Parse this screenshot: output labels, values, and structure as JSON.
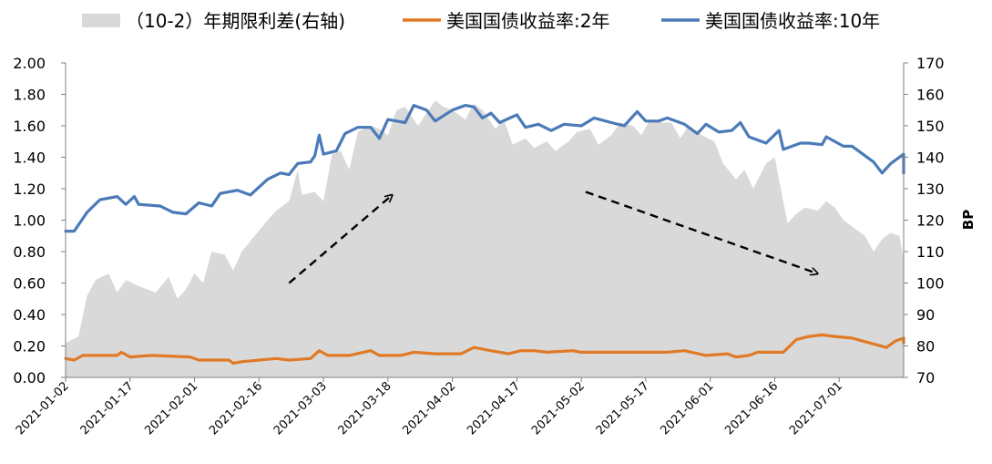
{
  "chart_data": {
    "type": "line",
    "title": "",
    "y_left": {
      "ticks": [
        "0.00",
        "0.20",
        "0.40",
        "0.60",
        "0.80",
        "1.00",
        "1.20",
        "1.40",
        "1.60",
        "1.80",
        "2.00"
      ],
      "ylim": [
        0,
        2.0
      ]
    },
    "y_right": {
      "label": "BP",
      "ticks": [
        "70",
        "80",
        "90",
        "100",
        "110",
        "120",
        "130",
        "140",
        "150",
        "160",
        "170"
      ],
      "ylim": [
        70,
        170
      ]
    },
    "x_ticks": [
      "2021-01-02",
      "2021-01-17",
      "2021-02-01",
      "2021-02-16",
      "2021-03-03",
      "2021-03-18",
      "2021-04-02",
      "2021-04-17",
      "2021-05-02",
      "2021-05-17",
      "2021-06-01",
      "2021-06-16",
      "2021-07-01"
    ],
    "x_range": [
      "2021-01-02",
      "2021-07-16"
    ],
    "legend_position": "top",
    "series": [
      {
        "name": "（10-2）年期限利差(右轴)",
        "type": "area",
        "axis": "right",
        "color": "#d9d9d9",
        "points": [
          [
            "2021-01-01",
            81
          ],
          [
            "2021-01-05",
            83
          ],
          [
            "2021-01-07",
            96
          ],
          [
            "2021-01-09",
            101
          ],
          [
            "2021-01-12",
            103
          ],
          [
            "2021-01-14",
            97
          ],
          [
            "2021-01-16",
            101
          ],
          [
            "2021-01-19",
            99
          ],
          [
            "2021-01-23",
            97
          ],
          [
            "2021-01-26",
            102
          ],
          [
            "2021-01-28",
            95
          ],
          [
            "2021-01-30",
            98
          ],
          [
            "2021-02-01",
            103
          ],
          [
            "2021-02-03",
            100
          ],
          [
            "2021-02-05",
            110
          ],
          [
            "2021-02-08",
            109
          ],
          [
            "2021-02-10",
            104
          ],
          [
            "2021-02-12",
            110
          ],
          [
            "2021-02-15",
            115
          ],
          [
            "2021-02-18",
            120
          ],
          [
            "2021-02-20",
            123
          ],
          [
            "2021-02-23",
            126
          ],
          [
            "2021-02-25",
            136
          ],
          [
            "2021-02-26",
            128
          ],
          [
            "2021-03-01",
            129
          ],
          [
            "2021-03-03",
            126
          ],
          [
            "2021-03-05",
            141
          ],
          [
            "2021-03-07",
            142
          ],
          [
            "2021-03-09",
            136
          ],
          [
            "2021-03-11",
            148
          ],
          [
            "2021-03-14",
            150
          ],
          [
            "2021-03-16",
            149
          ],
          [
            "2021-03-18",
            147
          ],
          [
            "2021-03-20",
            155
          ],
          [
            "2021-03-22",
            156
          ],
          [
            "2021-03-25",
            150
          ],
          [
            "2021-03-27",
            154
          ],
          [
            "2021-03-29",
            158
          ],
          [
            "2021-03-31",
            156
          ],
          [
            "2021-04-02",
            155
          ],
          [
            "2021-04-05",
            152
          ],
          [
            "2021-04-07",
            157
          ],
          [
            "2021-04-09",
            155
          ],
          [
            "2021-04-12",
            149
          ],
          [
            "2021-04-14",
            152
          ],
          [
            "2021-04-16",
            144
          ],
          [
            "2021-04-19",
            146
          ],
          [
            "2021-04-21",
            143
          ],
          [
            "2021-04-24",
            145
          ],
          [
            "2021-04-26",
            142
          ],
          [
            "2021-04-29",
            145
          ],
          [
            "2021-05-01",
            148
          ],
          [
            "2021-05-04",
            149
          ],
          [
            "2021-05-06",
            144
          ],
          [
            "2021-05-09",
            147
          ],
          [
            "2021-05-11",
            151
          ],
          [
            "2021-05-14",
            150
          ],
          [
            "2021-05-16",
            147
          ],
          [
            "2021-05-18",
            152
          ],
          [
            "2021-05-21",
            151
          ],
          [
            "2021-05-23",
            151
          ],
          [
            "2021-05-25",
            146
          ],
          [
            "2021-05-27",
            150
          ],
          [
            "2021-05-30",
            147
          ],
          [
            "2021-06-02",
            145
          ],
          [
            "2021-06-04",
            138
          ],
          [
            "2021-06-07",
            133
          ],
          [
            "2021-06-09",
            136
          ],
          [
            "2021-06-11",
            130
          ],
          [
            "2021-06-14",
            138
          ],
          [
            "2021-06-16",
            140
          ],
          [
            "2021-06-19",
            119
          ],
          [
            "2021-06-21",
            122
          ],
          [
            "2021-06-23",
            124
          ],
          [
            "2021-06-26",
            123
          ],
          [
            "2021-06-28",
            126
          ],
          [
            "2021-06-30",
            124
          ],
          [
            "2021-07-02",
            120
          ],
          [
            "2021-07-05",
            117
          ],
          [
            "2021-07-07",
            115
          ],
          [
            "2021-07-09",
            110
          ],
          [
            "2021-07-11",
            114
          ],
          [
            "2021-07-13",
            116
          ],
          [
            "2021-07-15",
            115
          ],
          [
            "2021-07-16",
            108
          ]
        ]
      },
      {
        "name": "美国国债收益率:2年",
        "type": "line",
        "axis": "left",
        "color": "#e07a26",
        "points": [
          [
            "2021-01-01",
            0.12
          ],
          [
            "2021-01-04",
            0.11
          ],
          [
            "2021-01-06",
            0.14
          ],
          [
            "2021-01-14",
            0.14
          ],
          [
            "2021-01-15",
            0.16
          ],
          [
            "2021-01-17",
            0.13
          ],
          [
            "2021-01-22",
            0.14
          ],
          [
            "2021-01-31",
            0.13
          ],
          [
            "2021-02-02",
            0.11
          ],
          [
            "2021-02-09",
            0.11
          ],
          [
            "2021-02-10",
            0.09
          ],
          [
            "2021-02-12",
            0.1
          ],
          [
            "2021-02-20",
            0.12
          ],
          [
            "2021-02-23",
            0.11
          ],
          [
            "2021-02-28",
            0.12
          ],
          [
            "2021-03-02",
            0.17
          ],
          [
            "2021-03-04",
            0.14
          ],
          [
            "2021-03-09",
            0.14
          ],
          [
            "2021-03-14",
            0.17
          ],
          [
            "2021-03-16",
            0.14
          ],
          [
            "2021-03-21",
            0.14
          ],
          [
            "2021-03-24",
            0.16
          ],
          [
            "2021-03-29",
            0.15
          ],
          [
            "2021-04-04",
            0.15
          ],
          [
            "2021-04-07",
            0.19
          ],
          [
            "2021-04-11",
            0.17
          ],
          [
            "2021-04-15",
            0.15
          ],
          [
            "2021-04-18",
            0.17
          ],
          [
            "2021-04-21",
            0.17
          ],
          [
            "2021-04-24",
            0.16
          ],
          [
            "2021-04-30",
            0.17
          ],
          [
            "2021-05-02",
            0.16
          ],
          [
            "2021-05-07",
            0.16
          ],
          [
            "2021-05-12",
            0.16
          ],
          [
            "2021-05-22",
            0.16
          ],
          [
            "2021-05-26",
            0.17
          ],
          [
            "2021-05-31",
            0.14
          ],
          [
            "2021-06-05",
            0.15
          ],
          [
            "2021-06-07",
            0.13
          ],
          [
            "2021-06-10",
            0.14
          ],
          [
            "2021-06-12",
            0.16
          ],
          [
            "2021-06-18",
            0.16
          ],
          [
            "2021-06-21",
            0.24
          ],
          [
            "2021-06-24",
            0.26
          ],
          [
            "2021-06-27",
            0.27
          ],
          [
            "2021-06-30",
            0.26
          ],
          [
            "2021-07-04",
            0.25
          ],
          [
            "2021-07-08",
            0.22
          ],
          [
            "2021-07-12",
            0.19
          ],
          [
            "2021-07-14",
            0.23
          ],
          [
            "2021-07-16",
            0.25
          ],
          [
            "2021-07-17",
            0.22
          ]
        ]
      },
      {
        "name": "美国国债收益率:10年",
        "type": "line",
        "axis": "left",
        "color": "#4a7ab7",
        "points": [
          [
            "2021-01-01",
            0.93
          ],
          [
            "2021-01-04",
            0.93
          ],
          [
            "2021-01-07",
            1.05
          ],
          [
            "2021-01-10",
            1.13
          ],
          [
            "2021-01-14",
            1.15
          ],
          [
            "2021-01-16",
            1.1
          ],
          [
            "2021-01-18",
            1.15
          ],
          [
            "2021-01-19",
            1.1
          ],
          [
            "2021-01-24",
            1.09
          ],
          [
            "2021-01-27",
            1.05
          ],
          [
            "2021-01-30",
            1.04
          ],
          [
            "2021-02-02",
            1.11
          ],
          [
            "2021-02-05",
            1.09
          ],
          [
            "2021-02-07",
            1.17
          ],
          [
            "2021-02-11",
            1.19
          ],
          [
            "2021-02-14",
            1.16
          ],
          [
            "2021-02-18",
            1.26
          ],
          [
            "2021-02-21",
            1.3
          ],
          [
            "2021-02-23",
            1.29
          ],
          [
            "2021-02-25",
            1.36
          ],
          [
            "2021-02-28",
            1.37
          ],
          [
            "2021-03-01",
            1.41
          ],
          [
            "2021-03-02",
            1.54
          ],
          [
            "2021-03-03",
            1.42
          ],
          [
            "2021-03-06",
            1.44
          ],
          [
            "2021-03-08",
            1.55
          ],
          [
            "2021-03-11",
            1.59
          ],
          [
            "2021-03-14",
            1.59
          ],
          [
            "2021-03-16",
            1.52
          ],
          [
            "2021-03-18",
            1.64
          ],
          [
            "2021-03-22",
            1.62
          ],
          [
            "2021-03-24",
            1.73
          ],
          [
            "2021-03-27",
            1.7
          ],
          [
            "2021-03-29",
            1.63
          ],
          [
            "2021-04-02",
            1.7
          ],
          [
            "2021-04-05",
            1.73
          ],
          [
            "2021-04-07",
            1.72
          ],
          [
            "2021-04-09",
            1.65
          ],
          [
            "2021-04-11",
            1.68
          ],
          [
            "2021-04-13",
            1.62
          ],
          [
            "2021-04-17",
            1.67
          ],
          [
            "2021-04-19",
            1.59
          ],
          [
            "2021-04-22",
            1.61
          ],
          [
            "2021-04-25",
            1.57
          ],
          [
            "2021-04-28",
            1.61
          ],
          [
            "2021-05-02",
            1.6
          ],
          [
            "2021-05-05",
            1.65
          ],
          [
            "2021-05-09",
            1.62
          ],
          [
            "2021-05-12",
            1.6
          ],
          [
            "2021-05-15",
            1.69
          ],
          [
            "2021-05-17",
            1.63
          ],
          [
            "2021-05-20",
            1.63
          ],
          [
            "2021-05-22",
            1.65
          ],
          [
            "2021-05-26",
            1.61
          ],
          [
            "2021-05-29",
            1.55
          ],
          [
            "2021-05-31",
            1.61
          ],
          [
            "2021-06-03",
            1.56
          ],
          [
            "2021-06-06",
            1.57
          ],
          [
            "2021-06-08",
            1.62
          ],
          [
            "2021-06-10",
            1.53
          ],
          [
            "2021-06-14",
            1.49
          ],
          [
            "2021-06-17",
            1.57
          ],
          [
            "2021-06-18",
            1.45
          ],
          [
            "2021-06-22",
            1.49
          ],
          [
            "2021-06-24",
            1.49
          ],
          [
            "2021-06-27",
            1.48
          ],
          [
            "2021-06-28",
            1.53
          ],
          [
            "2021-07-02",
            1.47
          ],
          [
            "2021-07-04",
            1.47
          ],
          [
            "2021-07-06",
            1.43
          ],
          [
            "2021-07-09",
            1.37
          ],
          [
            "2021-07-11",
            1.3
          ],
          [
            "2021-07-13",
            1.36
          ],
          [
            "2021-07-16",
            1.42
          ],
          [
            "2021-07-18",
            1.3
          ]
        ]
      }
    ],
    "annotations": [
      {
        "type": "dashed-arrow",
        "from": [
          "2021-02-23",
          100
        ],
        "to": [
          "2021-03-19",
          128
        ],
        "axis": "right"
      },
      {
        "type": "dashed-arrow",
        "from": [
          "2021-05-03",
          129
        ],
        "to": [
          "2021-06-26",
          103
        ],
        "axis": "right"
      }
    ]
  }
}
